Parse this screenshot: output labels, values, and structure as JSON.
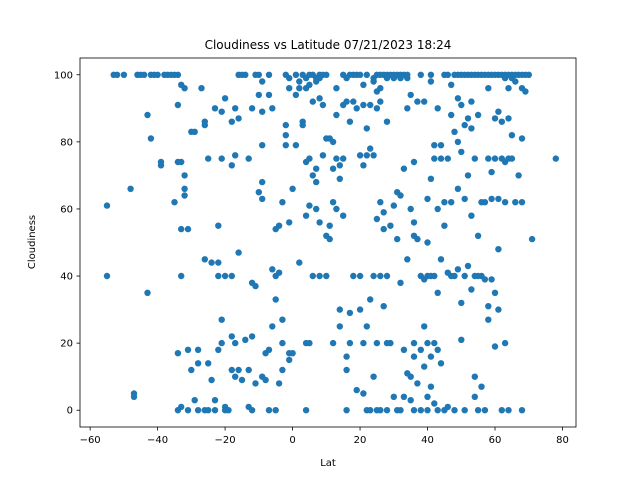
{
  "chart_data": {
    "type": "scatter",
    "title": "Cloudiness vs Latitude 07/21/2023 18:24",
    "xlabel": "Lat",
    "ylabel": "Cloudiness",
    "xlim": [
      -63,
      84
    ],
    "ylim": [
      -5,
      105
    ],
    "xticks": [
      -60,
      -40,
      -20,
      0,
      20,
      40,
      60,
      80
    ],
    "yticks": [
      0,
      20,
      40,
      60,
      80,
      100
    ],
    "grid": false,
    "marker_color": "#1f77b4",
    "points": [
      [
        -55,
        61
      ],
      [
        -55,
        40
      ],
      [
        -53,
        100
      ],
      [
        -52,
        100
      ],
      [
        -50,
        100
      ],
      [
        -48,
        66
      ],
      [
        -47,
        5
      ],
      [
        -47,
        4
      ],
      [
        -46,
        100
      ],
      [
        -45,
        100
      ],
      [
        -44,
        100
      ],
      [
        -43,
        88
      ],
      [
        -43,
        35
      ],
      [
        -42,
        100
      ],
      [
        -42,
        81
      ],
      [
        -41,
        100
      ],
      [
        -40,
        100
      ],
      [
        -39,
        73
      ],
      [
        -39,
        74
      ],
      [
        -38,
        100
      ],
      [
        -37,
        100
      ],
      [
        -36,
        100
      ],
      [
        -35,
        100
      ],
      [
        -35,
        62
      ],
      [
        -34,
        91
      ],
      [
        -34,
        74
      ],
      [
        -34,
        100
      ],
      [
        -34,
        17
      ],
      [
        -34,
        0
      ],
      [
        -33,
        97
      ],
      [
        -33,
        74
      ],
      [
        -33,
        54
      ],
      [
        -33,
        40
      ],
      [
        -33,
        1
      ],
      [
        -32,
        70
      ],
      [
        -32,
        66
      ],
      [
        -32,
        64
      ],
      [
        -32,
        96
      ],
      [
        -31,
        54
      ],
      [
        -31,
        18
      ],
      [
        -31,
        0
      ],
      [
        -30,
        83
      ],
      [
        -30,
        12
      ],
      [
        -29,
        83
      ],
      [
        -29,
        3
      ],
      [
        -28,
        18
      ],
      [
        -28,
        14
      ],
      [
        -28,
        0
      ],
      [
        -27,
        96
      ],
      [
        -26,
        86
      ],
      [
        -26,
        85
      ],
      [
        -26,
        0
      ],
      [
        -26,
        45
      ],
      [
        -25,
        75
      ],
      [
        -25,
        14
      ],
      [
        -25,
        0
      ],
      [
        -24,
        44
      ],
      [
        -24,
        9
      ],
      [
        -23,
        90
      ],
      [
        -23,
        3
      ],
      [
        -23,
        0
      ],
      [
        -22,
        55
      ],
      [
        -22,
        44
      ],
      [
        -22,
        40
      ],
      [
        -22,
        18
      ],
      [
        -21,
        89
      ],
      [
        -21,
        75
      ],
      [
        -21,
        27
      ],
      [
        -21,
        20
      ],
      [
        -20,
        93
      ],
      [
        -20,
        40
      ],
      [
        -20,
        1
      ],
      [
        -20,
        0
      ],
      [
        -19,
        0
      ],
      [
        -18,
        86
      ],
      [
        -18,
        73
      ],
      [
        -18,
        40
      ],
      [
        -18,
        22
      ],
      [
        -18,
        12
      ],
      [
        -17,
        90
      ],
      [
        -17,
        76
      ],
      [
        -17,
        20
      ],
      [
        -17,
        10
      ],
      [
        -16,
        100
      ],
      [
        -16,
        47
      ],
      [
        -16,
        87
      ],
      [
        -16,
        12
      ],
      [
        -15,
        100
      ],
      [
        -15,
        9
      ],
      [
        -14,
        100
      ],
      [
        -14,
        21
      ],
      [
        -13,
        75
      ],
      [
        -13,
        12
      ],
      [
        -13,
        1
      ],
      [
        -12,
        90
      ],
      [
        -12,
        38
      ],
      [
        -12,
        22
      ],
      [
        -12,
        0
      ],
      [
        -11,
        37
      ],
      [
        -11,
        100
      ],
      [
        -11,
        8
      ],
      [
        -10,
        94
      ],
      [
        -10,
        100
      ],
      [
        -10,
        65
      ],
      [
        -9,
        98
      ],
      [
        -9,
        89
      ],
      [
        -9,
        63
      ],
      [
        -9,
        79
      ],
      [
        -9,
        68
      ],
      [
        -9,
        10
      ],
      [
        -8,
        9
      ],
      [
        -8,
        17
      ],
      [
        -7,
        100
      ],
      [
        -7,
        94
      ],
      [
        -7,
        0
      ],
      [
        -7,
        18
      ],
      [
        -6,
        90
      ],
      [
        -6,
        42
      ],
      [
        -6,
        25
      ],
      [
        -5,
        40
      ],
      [
        -5,
        33
      ],
      [
        -5,
        54
      ],
      [
        -5,
        0
      ],
      [
        -4,
        41
      ],
      [
        -4,
        55
      ],
      [
        -4,
        8
      ],
      [
        -3,
        62
      ],
      [
        -3,
        27
      ],
      [
        -3,
        20
      ],
      [
        -3,
        12
      ],
      [
        -2,
        85
      ],
      [
        -2,
        100
      ],
      [
        -2,
        79
      ],
      [
        -2,
        82
      ],
      [
        -1,
        96
      ],
      [
        -1,
        99
      ],
      [
        -1,
        56
      ],
      [
        -1,
        17
      ],
      [
        -1,
        15
      ],
      [
        0,
        66
      ],
      [
        0,
        17
      ],
      [
        1,
        79
      ],
      [
        1,
        94
      ],
      [
        1,
        100
      ],
      [
        2,
        98
      ],
      [
        2,
        96
      ],
      [
        2,
        44
      ],
      [
        3,
        86
      ],
      [
        3,
        85
      ],
      [
        3,
        100
      ],
      [
        4,
        96
      ],
      [
        4,
        99
      ],
      [
        4,
        74
      ],
      [
        4,
        58
      ],
      [
        4,
        20
      ],
      [
        4,
        0
      ],
      [
        5,
        97
      ],
      [
        5,
        100
      ],
      [
        5,
        75
      ],
      [
        5,
        61
      ],
      [
        5,
        20
      ],
      [
        6,
        100
      ],
      [
        6,
        92
      ],
      [
        6,
        70
      ],
      [
        6,
        40
      ],
      [
        7,
        99
      ],
      [
        7,
        98
      ],
      [
        7,
        72
      ],
      [
        7,
        68
      ],
      [
        7,
        60
      ],
      [
        8,
        93
      ],
      [
        8,
        100
      ],
      [
        8,
        99
      ],
      [
        8,
        56
      ],
      [
        8,
        40
      ],
      [
        9,
        100
      ],
      [
        9,
        91
      ],
      [
        9,
        76
      ],
      [
        10,
        100
      ],
      [
        10,
        81
      ],
      [
        10,
        52
      ],
      [
        10,
        40
      ],
      [
        11,
        81
      ],
      [
        11,
        51
      ],
      [
        11,
        55
      ],
      [
        12,
        80
      ],
      [
        12,
        72
      ],
      [
        12,
        62
      ],
      [
        12,
        20
      ],
      [
        13,
        88
      ],
      [
        13,
        96
      ],
      [
        13,
        75
      ],
      [
        13,
        60
      ],
      [
        14,
        73
      ],
      [
        14,
        69
      ],
      [
        14,
        30
      ],
      [
        14,
        25
      ],
      [
        15,
        100
      ],
      [
        15,
        91
      ],
      [
        15,
        75
      ],
      [
        15,
        58
      ],
      [
        16,
        99
      ],
      [
        16,
        92
      ],
      [
        16,
        16
      ],
      [
        16,
        12
      ],
      [
        16,
        0
      ],
      [
        17,
        100
      ],
      [
        17,
        86
      ],
      [
        17,
        29
      ],
      [
        17,
        20
      ],
      [
        18,
        92
      ],
      [
        18,
        100
      ],
      [
        18,
        40
      ],
      [
        19,
        100
      ],
      [
        19,
        90
      ],
      [
        19,
        6
      ],
      [
        20,
        100
      ],
      [
        20,
        76
      ],
      [
        20,
        40
      ],
      [
        20,
        30
      ],
      [
        21,
        97
      ],
      [
        21,
        91
      ],
      [
        21,
        73
      ],
      [
        21,
        20
      ],
      [
        21,
        5
      ],
      [
        22,
        100
      ],
      [
        22,
        84
      ],
      [
        22,
        76
      ],
      [
        22,
        25
      ],
      [
        22,
        0
      ],
      [
        23,
        91
      ],
      [
        23,
        78
      ],
      [
        23,
        33
      ],
      [
        23,
        0
      ],
      [
        24,
        99
      ],
      [
        24,
        98
      ],
      [
        24,
        76
      ],
      [
        24,
        40
      ],
      [
        24,
        10
      ],
      [
        25,
        100
      ],
      [
        25,
        95
      ],
      [
        25,
        90
      ],
      [
        25,
        57
      ],
      [
        25,
        20
      ],
      [
        25,
        0
      ],
      [
        26,
        100
      ],
      [
        26,
        96
      ],
      [
        26,
        92
      ],
      [
        26,
        62
      ],
      [
        26,
        40
      ],
      [
        26,
        0
      ],
      [
        27,
        100
      ],
      [
        27,
        59
      ],
      [
        27,
        54
      ],
      [
        27,
        31
      ],
      [
        28,
        100
      ],
      [
        28,
        99
      ],
      [
        28,
        86
      ],
      [
        28,
        40
      ],
      [
        28,
        20
      ],
      [
        28,
        0
      ],
      [
        29,
        100
      ],
      [
        29,
        55
      ],
      [
        29,
        20
      ],
      [
        30,
        100
      ],
      [
        30,
        99
      ],
      [
        30,
        61
      ],
      [
        30,
        4
      ],
      [
        31,
        100
      ],
      [
        31,
        65
      ],
      [
        31,
        51
      ],
      [
        31,
        0
      ],
      [
        32,
        100
      ],
      [
        32,
        99
      ],
      [
        32,
        64
      ],
      [
        32,
        38
      ],
      [
        32,
        0
      ],
      [
        33,
        100
      ],
      [
        33,
        72
      ],
      [
        33,
        18
      ],
      [
        33,
        4
      ],
      [
        34,
        99
      ],
      [
        34,
        100
      ],
      [
        34,
        90
      ],
      [
        34,
        45
      ],
      [
        34,
        11
      ],
      [
        35,
        94
      ],
      [
        35,
        60
      ],
      [
        35,
        10
      ],
      [
        35,
        3
      ],
      [
        36,
        74
      ],
      [
        36,
        56
      ],
      [
        36,
        52
      ],
      [
        36,
        20
      ],
      [
        36,
        16
      ],
      [
        36,
        0
      ],
      [
        37,
        92
      ],
      [
        37,
        51
      ],
      [
        37,
        8
      ],
      [
        38,
        100
      ],
      [
        38,
        40
      ],
      [
        38,
        18
      ],
      [
        38,
        0
      ],
      [
        39,
        92
      ],
      [
        39,
        39
      ],
      [
        39,
        25
      ],
      [
        39,
        13
      ],
      [
        40,
        63
      ],
      [
        40,
        50
      ],
      [
        40,
        40
      ],
      [
        40,
        20
      ],
      [
        40,
        4
      ],
      [
        40,
        0
      ],
      [
        41,
        100
      ],
      [
        41,
        98
      ],
      [
        41,
        69
      ],
      [
        41,
        40
      ],
      [
        41,
        16
      ],
      [
        41,
        7
      ],
      [
        42,
        79
      ],
      [
        42,
        75
      ],
      [
        42,
        40
      ],
      [
        42,
        20
      ],
      [
        42,
        2
      ],
      [
        43,
        90
      ],
      [
        43,
        60
      ],
      [
        43,
        35
      ],
      [
        43,
        18
      ],
      [
        43,
        0
      ],
      [
        44,
        79
      ],
      [
        44,
        75
      ],
      [
        44,
        45
      ],
      [
        44,
        14
      ],
      [
        45,
        100
      ],
      [
        45,
        62
      ],
      [
        45,
        55
      ],
      [
        45,
        0
      ],
      [
        46,
        100
      ],
      [
        46,
        75
      ],
      [
        46,
        41
      ],
      [
        46,
        1
      ],
      [
        47,
        97
      ],
      [
        47,
        88
      ],
      [
        47,
        62
      ],
      [
        47,
        40
      ],
      [
        48,
        100
      ],
      [
        48,
        83
      ],
      [
        48,
        40
      ],
      [
        48,
        0
      ],
      [
        49,
        100
      ],
      [
        49,
        93
      ],
      [
        49,
        80
      ],
      [
        49,
        66
      ],
      [
        49,
        42
      ],
      [
        50,
        100
      ],
      [
        50,
        91
      ],
      [
        50,
        77
      ],
      [
        50,
        32
      ],
      [
        50,
        21
      ],
      [
        51,
        100
      ],
      [
        51,
        85
      ],
      [
        51,
        63
      ],
      [
        51,
        40
      ],
      [
        51,
        0
      ],
      [
        52,
        100
      ],
      [
        52,
        87
      ],
      [
        52,
        70
      ],
      [
        52,
        43
      ],
      [
        53,
        100
      ],
      [
        53,
        92
      ],
      [
        53,
        84
      ],
      [
        53,
        58
      ],
      [
        53,
        36
      ],
      [
        54,
        100
      ],
      [
        54,
        75
      ],
      [
        54,
        40
      ],
      [
        54,
        10
      ],
      [
        54,
        4
      ],
      [
        55,
        100
      ],
      [
        55,
        88
      ],
      [
        55,
        52
      ],
      [
        55,
        40
      ],
      [
        55,
        0
      ],
      [
        56,
        100
      ],
      [
        56,
        62
      ],
      [
        56,
        40
      ],
      [
        56,
        7
      ],
      [
        57,
        100
      ],
      [
        57,
        62
      ],
      [
        57,
        39
      ],
      [
        57,
        0
      ],
      [
        58,
        100
      ],
      [
        58,
        96
      ],
      [
        58,
        75
      ],
      [
        58,
        31
      ],
      [
        58,
        27
      ],
      [
        59,
        100
      ],
      [
        59,
        71
      ],
      [
        59,
        63
      ],
      [
        59,
        39
      ],
      [
        60,
        100
      ],
      [
        60,
        87
      ],
      [
        60,
        75
      ],
      [
        60,
        35
      ],
      [
        60,
        19
      ],
      [
        61,
        100
      ],
      [
        61,
        89
      ],
      [
        61,
        63
      ],
      [
        61,
        48
      ],
      [
        61,
        30
      ],
      [
        62,
        100
      ],
      [
        62,
        86
      ],
      [
        62,
        75
      ],
      [
        62,
        0
      ],
      [
        63,
        100
      ],
      [
        63,
        99
      ],
      [
        63,
        74
      ],
      [
        63,
        62
      ],
      [
        63,
        20
      ],
      [
        64,
        100
      ],
      [
        64,
        96
      ],
      [
        64,
        87
      ],
      [
        64,
        75
      ],
      [
        64,
        0
      ],
      [
        65,
        100
      ],
      [
        65,
        99
      ],
      [
        65,
        82
      ],
      [
        65,
        75
      ],
      [
        66,
        100
      ],
      [
        66,
        98
      ],
      [
        66,
        62
      ],
      [
        67,
        100
      ],
      [
        67,
        70
      ],
      [
        68,
        100
      ],
      [
        68,
        96
      ],
      [
        68,
        81
      ],
      [
        68,
        62
      ],
      [
        68,
        0
      ],
      [
        69,
        100
      ],
      [
        69,
        95
      ],
      [
        70,
        100
      ],
      [
        71,
        51
      ],
      [
        78,
        75
      ]
    ]
  }
}
